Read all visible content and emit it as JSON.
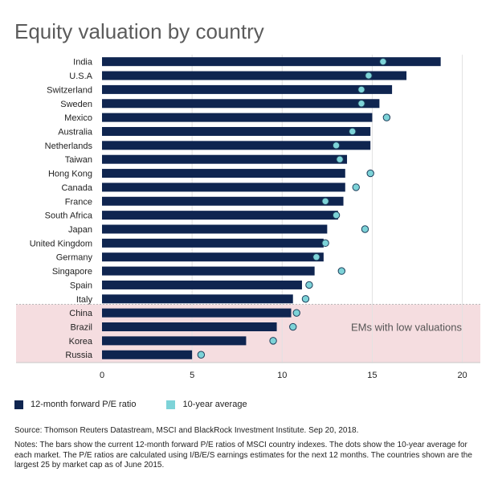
{
  "title": "Equity valuation by country",
  "colors": {
    "bar": "#0f2550",
    "dot_fill": "#7dd3d8",
    "dot_stroke": "#1c3e5a",
    "em_region": "#f5dde0",
    "grid": "#e2e2e2"
  },
  "chart_data": {
    "type": "bar",
    "orientation": "horizontal",
    "categories": [
      "India",
      "U.S.A",
      "Switzerland",
      "Sweden",
      "Mexico",
      "Australia",
      "Netherlands",
      "Taiwan",
      "Hong Kong",
      "Canada",
      "France",
      "South Africa",
      "Japan",
      "United Kingdom",
      "Germany",
      "Singapore",
      "Spain",
      "Italy",
      "China",
      "Brazil",
      "Korea",
      "Russia"
    ],
    "series": [
      {
        "name": "12-month forward P/E ratio",
        "kind": "bar",
        "values": [
          18.8,
          16.9,
          16.1,
          15.4,
          15.0,
          14.9,
          14.9,
          13.6,
          13.5,
          13.5,
          13.4,
          13.1,
          12.5,
          12.3,
          12.3,
          11.8,
          11.1,
          10.6,
          10.5,
          9.7,
          8.0,
          5.0
        ]
      },
      {
        "name": "10-year average",
        "kind": "dot",
        "values": [
          15.6,
          14.8,
          14.4,
          14.4,
          15.8,
          13.9,
          13.0,
          13.2,
          14.9,
          14.1,
          12.4,
          13.0,
          14.6,
          12.4,
          11.9,
          13.3,
          11.5,
          11.3,
          10.8,
          10.6,
          9.5,
          5.5
        ]
      }
    ],
    "xlim": [
      0,
      21
    ],
    "xticks": [
      "0",
      "5",
      "10",
      "15",
      "20"
    ],
    "grid": "vertical",
    "highlight": {
      "label": "EMs with low valuations",
      "categories": [
        "China",
        "Brazil",
        "Korea",
        "Russia"
      ]
    }
  },
  "legend": {
    "bar_label": "12-month forward P/E ratio",
    "dot_label": "10-year average"
  },
  "source": "Source: Thomson Reuters Datastream, MSCI and BlackRock Investment Institute. Sep 20, 2018.",
  "notes": "Notes: The bars show the current 12-month forward P/E ratios of MSCI country indexes. The dots show the 10-year average for each market. The P/E ratios are calculated using I/B/E/S earnings estimates for the next 12 months. The countries shown are the largest 25 by market cap as of June 2015."
}
